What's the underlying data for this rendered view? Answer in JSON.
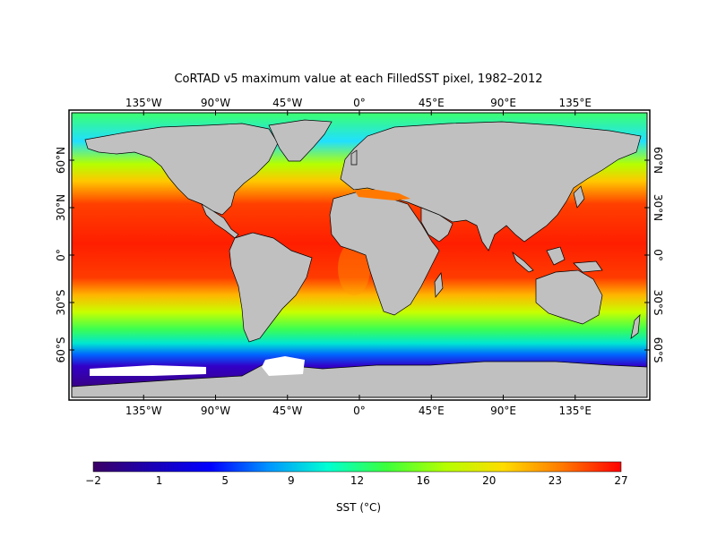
{
  "title": "CoRTAD v5 maximum value at each FilledSST pixel, 1982–2012",
  "lon_ticks": [
    {
      "label": "135°W",
      "lon": -135
    },
    {
      "label": "90°W",
      "lon": -90
    },
    {
      "label": "45°W",
      "lon": -45
    },
    {
      "label": "0°",
      "lon": 0
    },
    {
      "label": "45°E",
      "lon": 45
    },
    {
      "label": "90°E",
      "lon": 90
    },
    {
      "label": "135°E",
      "lon": 135
    }
  ],
  "lat_ticks": [
    {
      "label": "60°N",
      "lat": 60
    },
    {
      "label": "30°N",
      "lat": 30
    },
    {
      "label": "0°",
      "lat": 0
    },
    {
      "label": "30°S",
      "lat": -30
    },
    {
      "label": "60°S",
      "lat": -60
    }
  ],
  "map_extent": {
    "lon_min": -180,
    "lon_max": 180,
    "lat_min": -90,
    "lat_max": 90
  },
  "colorbar": {
    "label": "SST (°C)",
    "tick_labels": [
      "−2",
      "1",
      "5",
      "9",
      "12",
      "16",
      "20",
      "23",
      "27"
    ],
    "min": -2,
    "max": 27,
    "colors": [
      "#3c0064",
      "#1a00b4",
      "#0000ff",
      "#0096ff",
      "#00ffd2",
      "#3cff3c",
      "#b4ff00",
      "#ffdc00",
      "#ff7800",
      "#ff0000"
    ]
  },
  "colors": {
    "land": "#c0c0c0",
    "ice": "#ffffff",
    "coast": "#000000"
  }
}
